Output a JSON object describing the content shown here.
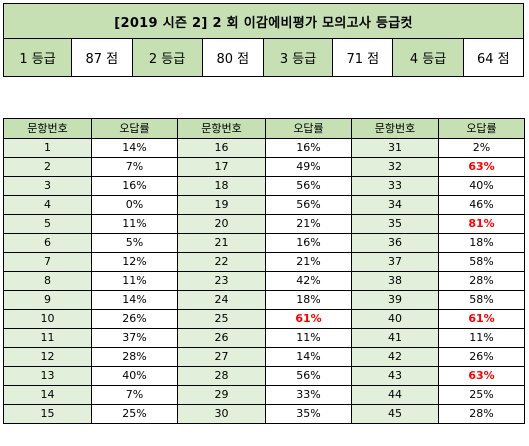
{
  "header": {
    "title": "[2019 시즌 2] 2 회 이감에비평가 모의고사 등급컷",
    "grades": [
      {
        "label": "1 등급",
        "score": "87 점"
      },
      {
        "label": "2 등급",
        "score": "80 점"
      },
      {
        "label": "3 등급",
        "score": "71 점"
      },
      {
        "label": "4 등급",
        "score": "64 점"
      }
    ]
  },
  "table": {
    "col_num": "문항번호",
    "col_rate": "오답률",
    "highlight_color": "#ff0000",
    "rows": [
      [
        {
          "n": "1",
          "r": "14%",
          "h": false
        },
        {
          "n": "16",
          "r": "16%",
          "h": false
        },
        {
          "n": "31",
          "r": "2%",
          "h": false
        }
      ],
      [
        {
          "n": "2",
          "r": "7%",
          "h": false
        },
        {
          "n": "17",
          "r": "49%",
          "h": false
        },
        {
          "n": "32",
          "r": "63%",
          "h": true
        }
      ],
      [
        {
          "n": "3",
          "r": "16%",
          "h": false
        },
        {
          "n": "18",
          "r": "56%",
          "h": false
        },
        {
          "n": "33",
          "r": "40%",
          "h": false
        }
      ],
      [
        {
          "n": "4",
          "r": "0%",
          "h": false
        },
        {
          "n": "19",
          "r": "56%",
          "h": false
        },
        {
          "n": "34",
          "r": "46%",
          "h": false
        }
      ],
      [
        {
          "n": "5",
          "r": "11%",
          "h": false
        },
        {
          "n": "20",
          "r": "21%",
          "h": false
        },
        {
          "n": "35",
          "r": "81%",
          "h": true
        }
      ],
      [
        {
          "n": "6",
          "r": "5%",
          "h": false
        },
        {
          "n": "21",
          "r": "16%",
          "h": false
        },
        {
          "n": "36",
          "r": "18%",
          "h": false
        }
      ],
      [
        {
          "n": "7",
          "r": "12%",
          "h": false
        },
        {
          "n": "22",
          "r": "21%",
          "h": false
        },
        {
          "n": "37",
          "r": "58%",
          "h": false
        }
      ],
      [
        {
          "n": "8",
          "r": "11%",
          "h": false
        },
        {
          "n": "23",
          "r": "42%",
          "h": false
        },
        {
          "n": "38",
          "r": "28%",
          "h": false
        }
      ],
      [
        {
          "n": "9",
          "r": "14%",
          "h": false
        },
        {
          "n": "24",
          "r": "18%",
          "h": false
        },
        {
          "n": "39",
          "r": "58%",
          "h": false
        }
      ],
      [
        {
          "n": "10",
          "r": "26%",
          "h": false
        },
        {
          "n": "25",
          "r": "61%",
          "h": true
        },
        {
          "n": "40",
          "r": "61%",
          "h": true
        }
      ],
      [
        {
          "n": "11",
          "r": "37%",
          "h": false
        },
        {
          "n": "26",
          "r": "11%",
          "h": false
        },
        {
          "n": "41",
          "r": "11%",
          "h": false
        }
      ],
      [
        {
          "n": "12",
          "r": "28%",
          "h": false
        },
        {
          "n": "27",
          "r": "14%",
          "h": false
        },
        {
          "n": "42",
          "r": "26%",
          "h": false
        }
      ],
      [
        {
          "n": "13",
          "r": "40%",
          "h": false
        },
        {
          "n": "28",
          "r": "56%",
          "h": false
        },
        {
          "n": "43",
          "r": "63%",
          "h": true
        }
      ],
      [
        {
          "n": "14",
          "r": "7%",
          "h": false
        },
        {
          "n": "29",
          "r": "33%",
          "h": false
        },
        {
          "n": "44",
          "r": "25%",
          "h": false
        }
      ],
      [
        {
          "n": "15",
          "r": "25%",
          "h": false
        },
        {
          "n": "30",
          "r": "35%",
          "h": false
        },
        {
          "n": "45",
          "r": "28%",
          "h": false
        }
      ]
    ]
  }
}
